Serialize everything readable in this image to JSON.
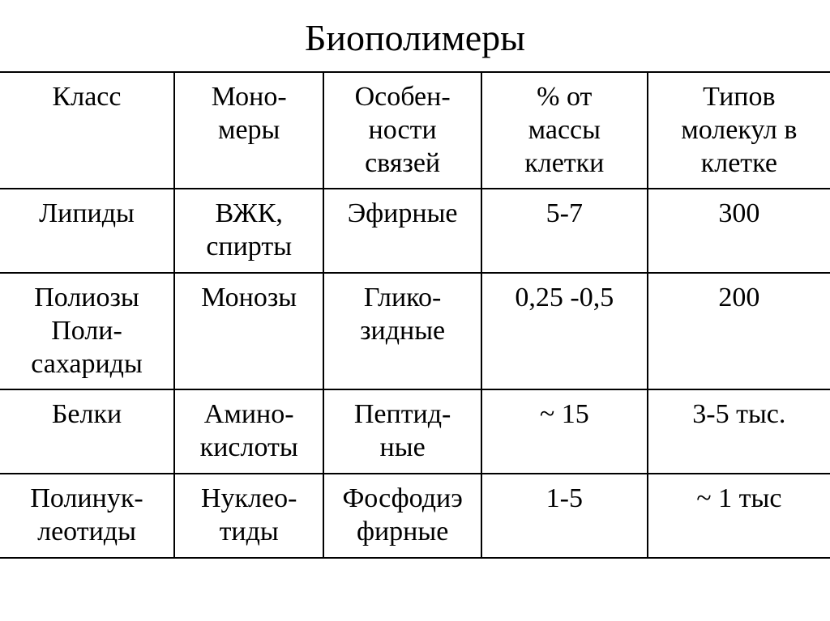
{
  "title": "Биополимеры",
  "table": {
    "colors": {
      "background": "#ffffff",
      "text": "#000000",
      "border": "#000000"
    },
    "typography": {
      "title_fontsize": 46,
      "cell_fontsize": 34,
      "font_family": "Times New Roman"
    },
    "column_widths": [
      "21%",
      "18%",
      "19%",
      "20%",
      "22%"
    ],
    "border_width": 2,
    "headers": {
      "col1": "Класс",
      "col2": "Моно-\nмеры",
      "col3": "Особен-\nности\nсвязей",
      "col4": "% от\nмассы\nклетки",
      "col5": "Типов\nмолекул в\nклетке"
    },
    "rows": [
      {
        "class": "Липиды",
        "monomers": "ВЖК,\nспирты",
        "bonds": "Эфирные",
        "percent": "5-7",
        "types": "300"
      },
      {
        "class": "Полиозы\nПоли-\nсахариды",
        "monomers": "Монозы",
        "bonds": "Глико-\nзидные",
        "percent": "0,25 -0,5",
        "types": "200"
      },
      {
        "class": "Белки",
        "monomers": "Амино-\nкислоты",
        "bonds": "Пептид-\nные",
        "percent": "~ 15",
        "types": "3-5 тыс."
      },
      {
        "class": "Полинук-\nлеотиды",
        "monomers": "Нуклео-\nтиды",
        "bonds": "Фосфодиэ\nфирные",
        "percent": "1-5",
        "types": "~ 1 тыс"
      }
    ]
  }
}
